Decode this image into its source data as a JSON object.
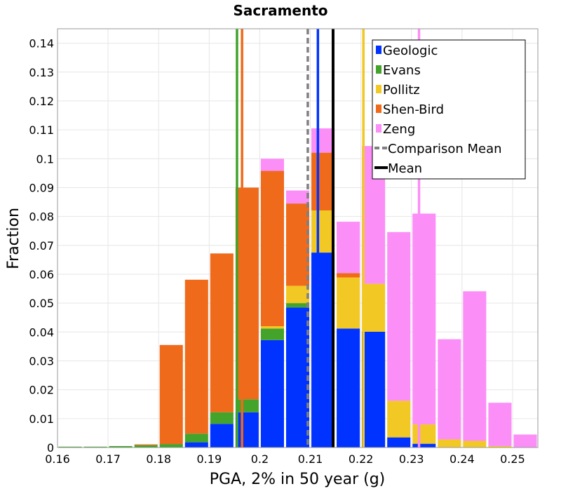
{
  "chart_data": {
    "type": "bar",
    "stacked": true,
    "title": "Sacramento",
    "xlabel": "PGA, 2% in 50 year (g)",
    "ylabel": "Fraction",
    "xlim": [
      0.16,
      0.255
    ],
    "ylim": [
      0,
      0.145
    ],
    "bin_width": 0.005,
    "x_ticks": [
      "0.16",
      "0.17",
      "0.18",
      "0.19",
      "0.2",
      "0.21",
      "0.22",
      "0.23",
      "0.24",
      "0.25"
    ],
    "y_ticks": [
      "0",
      "0.01",
      "0.02",
      "0.03",
      "0.04",
      "0.05",
      "0.06",
      "0.07",
      "0.08",
      "0.09",
      "0.1",
      "0.11",
      "0.12",
      "0.13",
      "0.14"
    ],
    "grid": true,
    "legend_position": "top-right",
    "bins": [
      0.1625,
      0.1675,
      0.1725,
      0.1775,
      0.1825,
      0.1875,
      0.1925,
      0.1975,
      0.2025,
      0.2075,
      0.2125,
      0.2175,
      0.2225,
      0.2275,
      0.2325,
      0.2375,
      0.2425,
      0.2475,
      0.2525
    ],
    "series": [
      {
        "name": "Geologic",
        "color": "#0033ff",
        "values": [
          0,
          0,
          0,
          0,
          0,
          0.0018,
          0.0082,
          0.0122,
          0.0372,
          0.0485,
          0.0675,
          0.0412,
          0.0401,
          0.0035,
          0.0013,
          0,
          0,
          0,
          0
        ]
      },
      {
        "name": "Evans",
        "color": "#44a32a",
        "values": [
          0.0003,
          0.0003,
          0.0005,
          0.0008,
          0.0012,
          0.003,
          0.004,
          0.0045,
          0.004,
          0.0015,
          0,
          0,
          0,
          0,
          0,
          0,
          0,
          0,
          0
        ]
      },
      {
        "name": "Pollitz",
        "color": "#f2c824",
        "values": [
          0,
          0,
          0,
          0,
          0,
          0,
          0,
          0,
          0.0008,
          0.006,
          0.0146,
          0.0177,
          0.0166,
          0.0127,
          0.0067,
          0.0028,
          0.0023,
          0.0005,
          0
        ]
      },
      {
        "name": "Shen-Bird",
        "color": "#ef6a1a",
        "values": [
          0,
          0,
          0,
          0.0003,
          0.0343,
          0.0533,
          0.055,
          0.0733,
          0.0538,
          0.0285,
          0.02,
          0.0015,
          0,
          0,
          0,
          0,
          0,
          0,
          0
        ]
      },
      {
        "name": "Zeng",
        "color": "#fc8ef8",
        "values": [
          0,
          0,
          0,
          0,
          0,
          0,
          0,
          0,
          0.0042,
          0.0045,
          0.0084,
          0.0178,
          0.0477,
          0.0584,
          0.073,
          0.0347,
          0.0518,
          0.015,
          0.0045
        ]
      }
    ],
    "vertical_lines": [
      {
        "name": "Evans",
        "x": 0.1955,
        "color": "#44a32a",
        "style": "solid",
        "in_legend": false
      },
      {
        "name": "Shen-Bird",
        "x": 0.1965,
        "color": "#ef6a1a",
        "style": "solid",
        "in_legend": false
      },
      {
        "name": "Geologic",
        "x": 0.2115,
        "color": "#0033ff",
        "style": "solid",
        "in_legend": false
      },
      {
        "name": "Pollitz",
        "x": 0.2205,
        "color": "#f2c824",
        "style": "solid",
        "in_legend": false
      },
      {
        "name": "Zeng",
        "x": 0.2315,
        "color": "#fc8ef8",
        "style": "solid",
        "in_legend": false
      },
      {
        "name": "Comparison Mean",
        "x": 0.2095,
        "color": "#808080",
        "style": "dashed",
        "in_legend": true
      },
      {
        "name": "Mean",
        "x": 0.2145,
        "color": "#000000",
        "style": "solid",
        "in_legend": true
      }
    ],
    "legend": [
      {
        "label": "Geologic",
        "color": "#0033ff",
        "kind": "swatch"
      },
      {
        "label": "Evans",
        "color": "#44a32a",
        "kind": "swatch"
      },
      {
        "label": "Pollitz",
        "color": "#f2c824",
        "kind": "swatch"
      },
      {
        "label": "Shen-Bird",
        "color": "#ef6a1a",
        "kind": "swatch"
      },
      {
        "label": "Zeng",
        "color": "#fc8ef8",
        "kind": "swatch"
      },
      {
        "label": "Comparison Mean",
        "color": "#808080",
        "kind": "dashed-line"
      },
      {
        "label": "Mean",
        "color": "#000000",
        "kind": "solid-line"
      }
    ]
  }
}
